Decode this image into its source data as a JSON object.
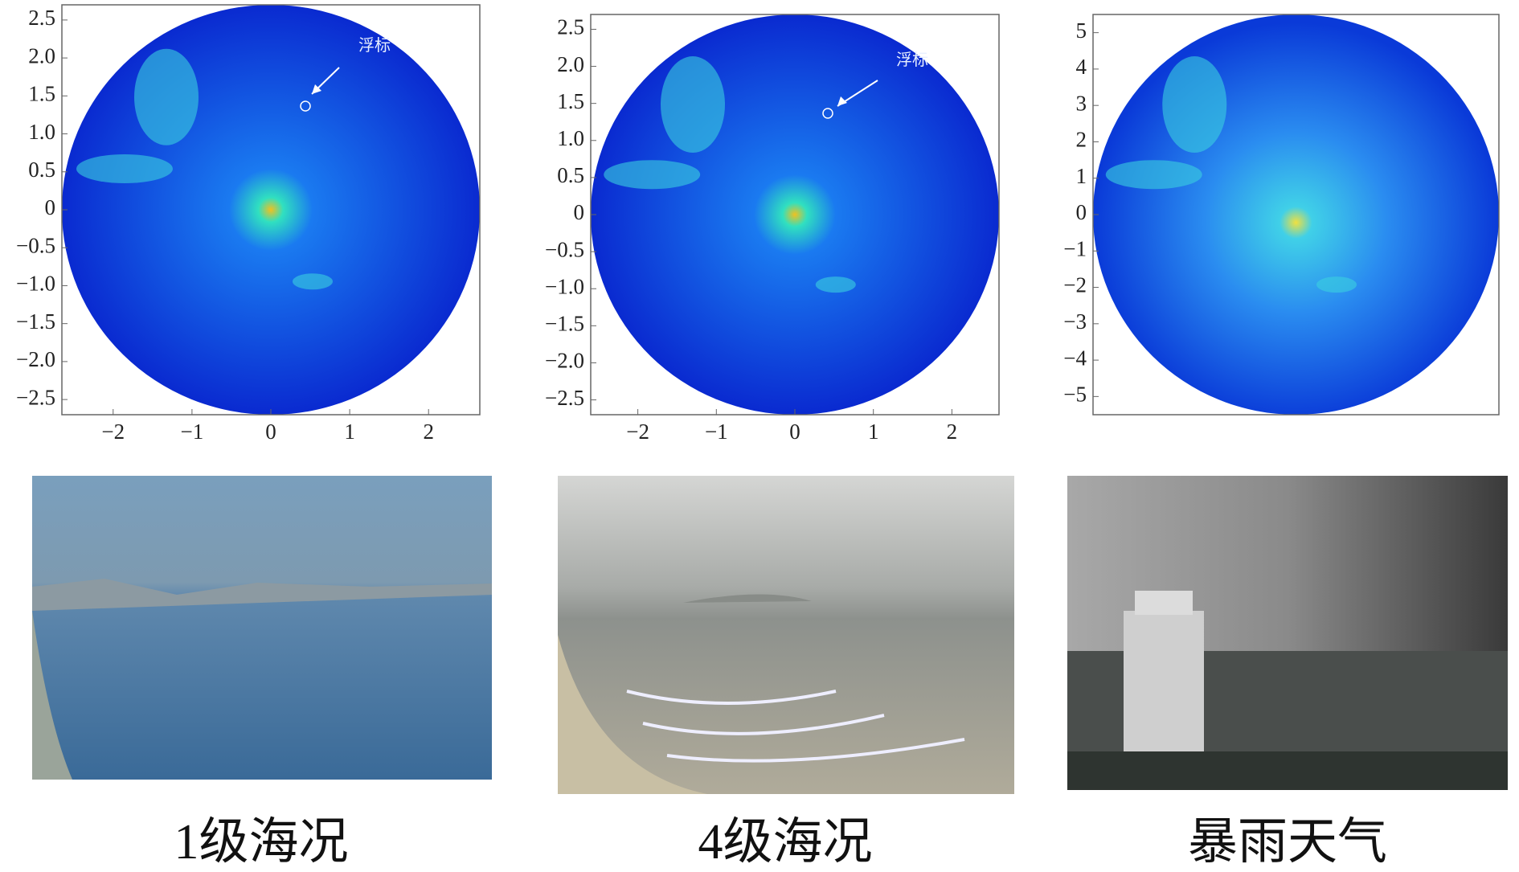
{
  "panels": [
    {
      "xlim": [
        -2.65,
        2.65
      ],
      "ylim": [
        -2.7,
        2.7
      ],
      "xticks": [
        {
          "value": -2,
          "label": "−2"
        },
        {
          "value": -1,
          "label": "−1"
        },
        0,
        1,
        2
      ],
      "yticks": [
        {
          "value": 2.5,
          "label": "2.5"
        },
        {
          "value": 2,
          "label": "2.0"
        },
        {
          "value": 1.5,
          "label": "1.5"
        },
        {
          "value": 1,
          "label": "1.0"
        },
        {
          "value": 0.5,
          "label": "0.5"
        },
        0,
        {
          "value": -0.5,
          "label": "−0.5"
        },
        {
          "value": -1,
          "label": "−1.0"
        },
        {
          "value": -1.5,
          "label": "−1.5"
        },
        {
          "value": -2,
          "label": "−2.0"
        },
        {
          "value": -2.5,
          "label": "−2.5"
        }
      ],
      "annotation": "浮标",
      "caption": "1级海况"
    },
    {
      "xlim": [
        -2.6,
        2.6
      ],
      "ylim": [
        -2.7,
        2.7
      ],
      "xticks": [
        {
          "value": -2,
          "label": "−2"
        },
        {
          "value": -1,
          "label": "−1"
        },
        0,
        1,
        2
      ],
      "yticks": [
        {
          "value": 2.5,
          "label": "2.5"
        },
        {
          "value": 2,
          "label": "2.0"
        },
        {
          "value": 1.5,
          "label": "1.5"
        },
        {
          "value": 1,
          "label": "1.0"
        },
        {
          "value": 0.5,
          "label": "0.5"
        },
        0,
        {
          "value": -0.5,
          "label": "−0.5"
        },
        {
          "value": -1,
          "label": "−1.0"
        },
        {
          "value": -1.5,
          "label": "−1.5"
        },
        {
          "value": -2,
          "label": "−2.0"
        },
        {
          "value": -2.5,
          "label": "−2.5"
        }
      ],
      "annotation": "浮标",
      "caption": "4级海况"
    },
    {
      "xlim": [
        -5.5,
        5.5
      ],
      "ylim": [
        -5.5,
        5.5
      ],
      "yticks": [
        5,
        4,
        3,
        2,
        1,
        0,
        {
          "value": -1,
          "label": "−1"
        },
        {
          "value": -2,
          "label": "−2"
        },
        {
          "value": -3,
          "label": "−3"
        },
        {
          "value": -4,
          "label": "−4"
        },
        {
          "value": -5,
          "label": "−5"
        }
      ],
      "caption": "暴雨天气"
    }
  ]
}
